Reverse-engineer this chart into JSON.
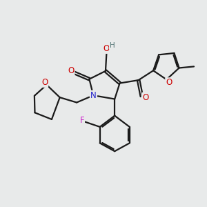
{
  "bg_color": "#e8eaea",
  "bond_color": "#1a1a1a",
  "bond_width": 1.6,
  "dbo": 0.06,
  "atom_colors": {
    "O": "#cc0000",
    "N": "#2222cc",
    "F": "#cc22cc",
    "H": "#557777",
    "C": "#1a1a1a"
  },
  "font_size": 8.5
}
